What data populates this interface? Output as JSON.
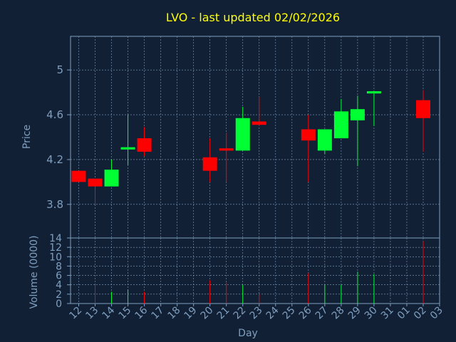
{
  "chart_data": {
    "type": "candlestick",
    "title": "LVO - last updated 02/02/2026",
    "xlabel": "Day",
    "ylabel": "Price",
    "volume_label": "Volume (0000)",
    "x": [
      "12",
      "13",
      "14",
      "15",
      "16",
      "17",
      "18",
      "19",
      "20",
      "21",
      "22",
      "23",
      "24",
      "25",
      "26",
      "27",
      "28",
      "29",
      "30",
      "31",
      "01",
      "02",
      "03"
    ],
    "price_ylim": [
      3.5,
      5.3
    ],
    "price_ticks": [
      "3.8",
      "4.2",
      "4.6",
      "5"
    ],
    "volume_ylim": [
      0,
      14
    ],
    "volume_ticks": [
      "0",
      "2",
      "4",
      "6",
      "8",
      "10",
      "12",
      "14"
    ],
    "series": [
      {
        "x": "12",
        "open": 4.1,
        "high": 4.1,
        "low": 4.0,
        "close": 4.0,
        "volume": 0
      },
      {
        "x": "13",
        "open": 4.03,
        "high": 4.03,
        "low": 3.8,
        "close": 3.96,
        "volume": 4
      },
      {
        "x": "14",
        "open": 3.96,
        "high": 4.2,
        "low": 3.96,
        "close": 4.11,
        "volume": 2.5
      },
      {
        "x": "15",
        "open": 4.29,
        "high": 4.6,
        "low": 4.15,
        "close": 4.31,
        "volume": 3
      },
      {
        "x": "16",
        "open": 4.39,
        "high": 4.49,
        "low": 4.23,
        "close": 4.27,
        "volume": 2.5
      },
      {
        "x": "20",
        "open": 4.22,
        "high": 4.39,
        "low": 4.0,
        "close": 4.1,
        "volume": 5
      },
      {
        "x": "21",
        "open": 4.3,
        "high": 4.44,
        "low": 4.0,
        "close": 4.28,
        "volume": 4.5
      },
      {
        "x": "22",
        "open": 4.28,
        "high": 4.67,
        "low": 4.28,
        "close": 4.57,
        "volume": 4
      },
      {
        "x": "23",
        "open": 4.54,
        "high": 4.76,
        "low": 4.5,
        "close": 4.51,
        "volume": 2
      },
      {
        "x": "26",
        "open": 4.47,
        "high": 4.6,
        "low": 4.0,
        "close": 4.37,
        "volume": 6.5
      },
      {
        "x": "27",
        "open": 4.28,
        "high": 4.47,
        "low": 4.25,
        "close": 4.47,
        "volume": 4
      },
      {
        "x": "28",
        "open": 4.39,
        "high": 4.74,
        "low": 4.39,
        "close": 4.63,
        "volume": 4
      },
      {
        "x": "29",
        "open": 4.55,
        "high": 4.77,
        "low": 4.14,
        "close": 4.65,
        "volume": 6.8
      },
      {
        "x": "30",
        "open": 4.79,
        "high": 4.81,
        "low": 4.5,
        "close": 4.81,
        "volume": 6.3
      },
      {
        "x": "02",
        "open": 4.73,
        "high": 4.82,
        "low": 4.27,
        "close": 4.57,
        "volume": 13.3
      }
    ],
    "grid": true,
    "colors": {
      "up": "#00ff33",
      "down": "#ff0000",
      "axis": "#7f9fbf",
      "grid": "#7f9fbf",
      "title": "#ffff00",
      "background": "#112035"
    }
  }
}
